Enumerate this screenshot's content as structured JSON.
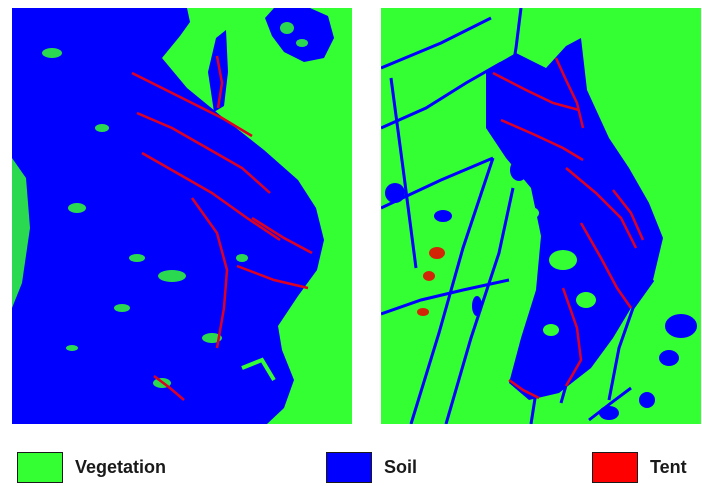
{
  "maps": [
    {
      "name": "left-classification-map"
    },
    {
      "name": "right-classification-map"
    }
  ],
  "legend": [
    {
      "label": "Vegetation",
      "color": "#33ff33"
    },
    {
      "label": "Soil",
      "color": "#0000ff"
    },
    {
      "label": "Tent",
      "color": "#ff0000"
    }
  ]
}
